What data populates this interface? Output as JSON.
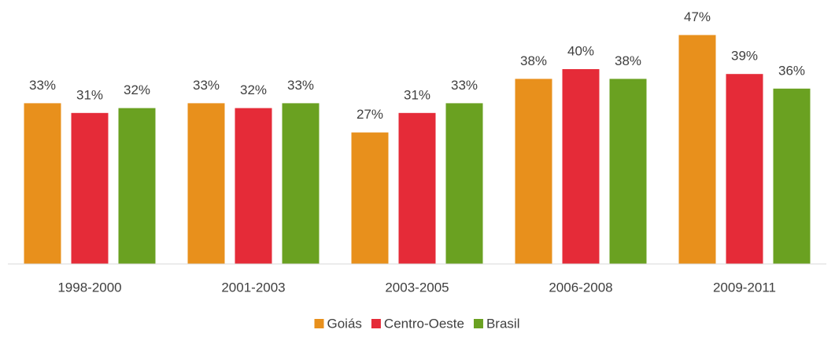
{
  "chart_data": {
    "type": "bar",
    "categories": [
      "1998-2000",
      "2001-2003",
      "2003-2005",
      "2006-2008",
      "2009-2011"
    ],
    "series": [
      {
        "name": "Goiás",
        "color": "#e8901c",
        "values": [
          33,
          33,
          27,
          38,
          47
        ],
        "value_labels": [
          "33%",
          "33%",
          "27%",
          "38%",
          "47%"
        ]
      },
      {
        "name": "Centro-Oeste",
        "color": "#e52b38",
        "values": [
          31,
          32,
          31,
          40,
          39
        ],
        "value_labels": [
          "31%",
          "32%",
          "31%",
          "40%",
          "39%"
        ]
      },
      {
        "name": "Brasil",
        "color": "#6aa121",
        "values": [
          32,
          33,
          33,
          38,
          36
        ],
        "value_labels": [
          "32%",
          "33%",
          "33%",
          "38%",
          "36%"
        ]
      }
    ],
    "ylim": [
      0,
      50
    ],
    "legend": "bottom"
  }
}
